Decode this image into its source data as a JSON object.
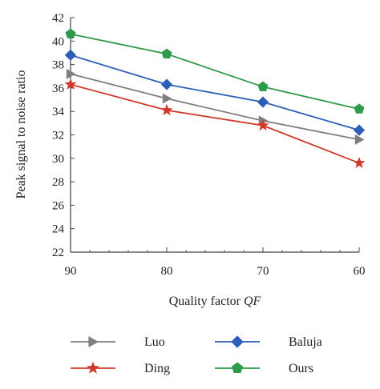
{
  "chart_data": {
    "type": "line",
    "xlabel": "Quality factor",
    "xlabel_italic": "QF",
    "ylabel": "Peak signal to noise ratio",
    "categories": [
      "90",
      "80",
      "70",
      "60"
    ],
    "ylim": [
      22,
      42
    ],
    "yticks": [
      "22",
      "24",
      "26",
      "28",
      "30",
      "32",
      "34",
      "36",
      "38",
      "40",
      "42"
    ],
    "grid": false,
    "legend_position": "bottom",
    "series": [
      {
        "name": "Luo",
        "marker": "triangle-right",
        "color": "#7f7f7f",
        "values": [
          37.2,
          35.1,
          33.2,
          31.6
        ]
      },
      {
        "name": "Baluja",
        "marker": "diamond",
        "color": "#2e5fb8",
        "values": [
          38.8,
          36.3,
          34.8,
          32.4
        ]
      },
      {
        "name": "Ding",
        "marker": "star",
        "color": "#d03a2a",
        "values": [
          36.3,
          34.1,
          32.8,
          29.6
        ]
      },
      {
        "name": "Ours",
        "marker": "pentagon",
        "color": "#2e9a4c",
        "values": [
          40.6,
          38.9,
          36.1,
          34.2
        ]
      }
    ]
  }
}
